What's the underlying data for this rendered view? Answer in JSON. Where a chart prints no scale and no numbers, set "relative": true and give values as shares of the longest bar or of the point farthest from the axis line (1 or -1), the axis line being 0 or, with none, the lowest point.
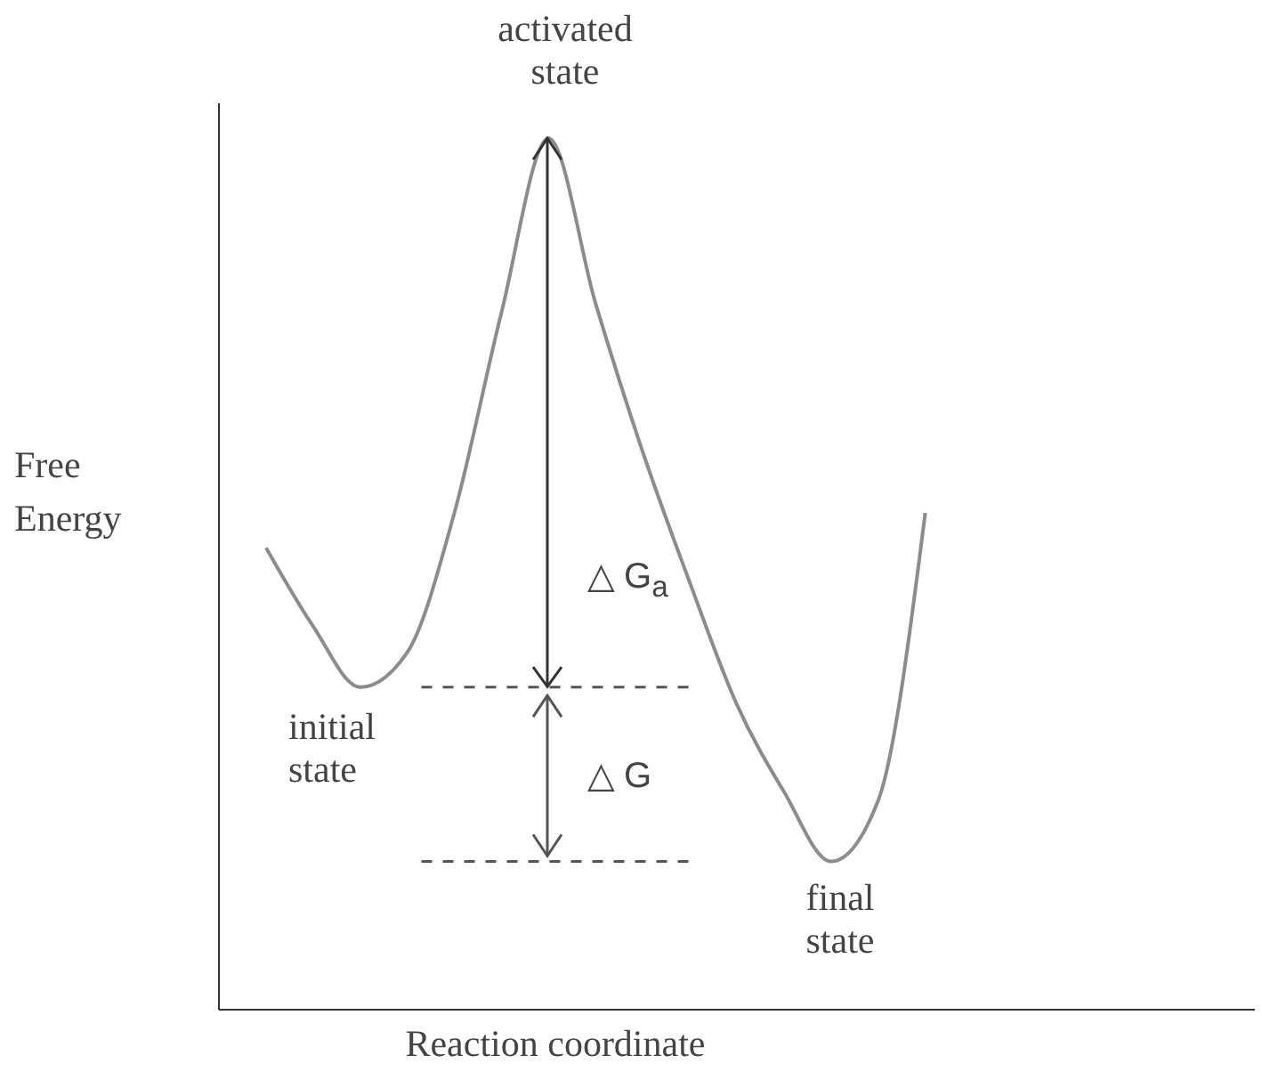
{
  "chart_data": {
    "type": "line",
    "relative": true,
    "xlabel": "Reaction coordinate",
    "ylabel": "Free Energy",
    "categories": [
      null,
      null,
      null,
      null,
      null,
      null,
      null,
      null,
      null,
      null,
      null,
      null,
      null,
      null,
      null,
      null,
      null,
      null,
      null,
      null,
      null,
      null,
      null
    ],
    "series": [
      {
        "color": "#8c8c8c",
        "values": [
          null,
          0.53,
          0.44,
          0.37,
          0.41,
          0.57,
          0.8,
          1,
          0.81,
          0.64,
          0.49,
          0.35,
          0.25,
          0.17,
          0.24,
          0.57,
          null,
          null,
          null,
          null,
          null,
          null,
          null
        ]
      }
    ],
    "ref_lines": [
      {
        "axis": "y",
        "value": 0.37,
        "label": null,
        "color": "#555555",
        "line_style": "dashed"
      },
      {
        "axis": "y",
        "value": 0.17,
        "label": null,
        "color": "#555555",
        "line_style": "dashed"
      }
    ],
    "annotations": [
      "activated state",
      "initial state",
      "final state",
      "△ G$_{a}$",
      "△ G"
    ],
    "marker": "none",
    "line_style": "solid"
  }
}
